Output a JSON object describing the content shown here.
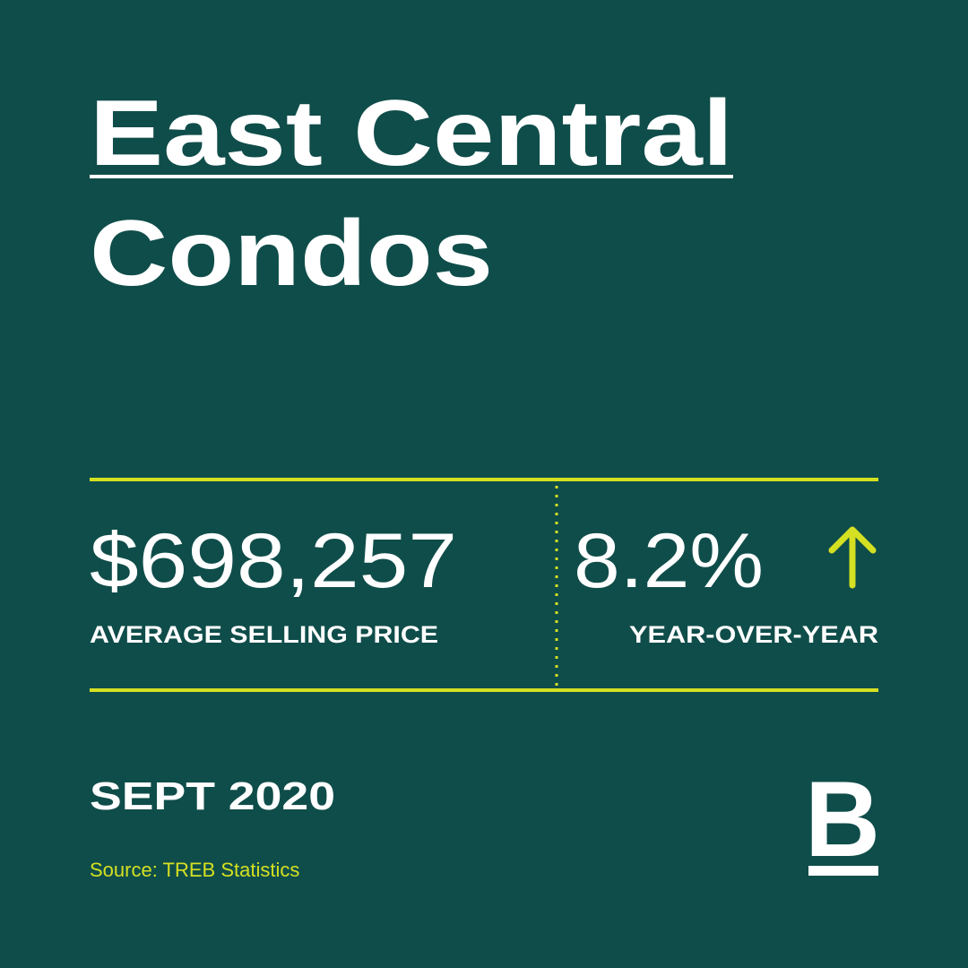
{
  "header": {
    "title_line1": "East Central",
    "title_line2": "Condos"
  },
  "stats": {
    "price": {
      "value": "$698,257",
      "label": "AVERAGE SELLING PRICE"
    },
    "change": {
      "value": "8.2%",
      "label": "YEAR-OVER-YEAR"
    }
  },
  "footer": {
    "date": "SEPT 2020",
    "source": "Source: TREB Statistics",
    "logo": "B"
  }
}
